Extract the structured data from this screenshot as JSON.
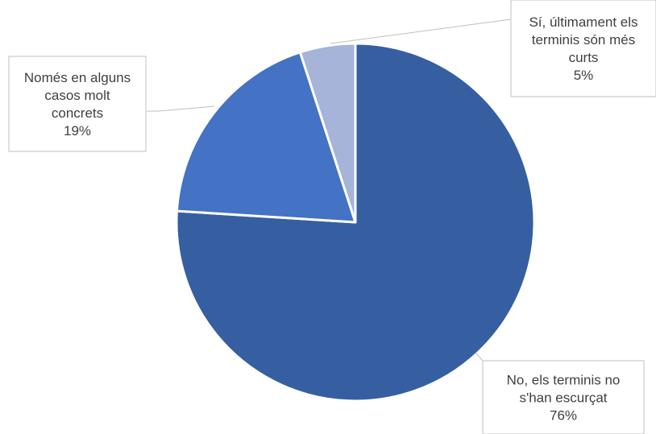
{
  "chart_data": {
    "type": "pie",
    "start_angle_deg": 0,
    "direction": "clockwise",
    "slices": [
      {
        "category_lines": [
          "No, els terminis no",
          "s'han escurçat"
        ],
        "percent_label": "76%",
        "value": 76,
        "color": "#365fa1"
      },
      {
        "category_lines": [
          "Només en alguns",
          "casos molt",
          "concrets"
        ],
        "percent_label": "19%",
        "value": 19,
        "color": "#4472c4"
      },
      {
        "category_lines": [
          "Sí, últimament els",
          "terminis són més",
          "curts"
        ],
        "percent_label": "5%",
        "value": 5,
        "color": "#a5b4d8"
      }
    ]
  }
}
